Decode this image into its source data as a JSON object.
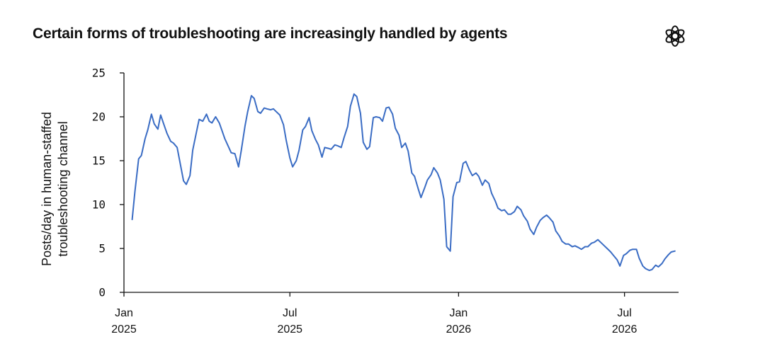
{
  "header": {
    "title": "Certain forms of troubleshooting are increasingly handled by agents",
    "logo_icon": "openai-logo-icon"
  },
  "chart_data": {
    "type": "line",
    "title": "Certain forms of troubleshooting are increasingly handled by agents",
    "xlabel": "",
    "ylabel_lines": [
      "Posts/day in human-staffed",
      "troubleshooting channel"
    ],
    "ylim": [
      0,
      25
    ],
    "yticks": [
      0,
      5,
      10,
      15,
      20,
      25
    ],
    "xlim": [
      "2025-01-01",
      "2026-08-29"
    ],
    "xticks": [
      {
        "date": "2025-01-01",
        "line1": "Jan",
        "line2": "2025"
      },
      {
        "date": "2025-07-01",
        "line1": "Jul",
        "line2": "2025"
      },
      {
        "date": "2026-01-01",
        "line1": "Jan",
        "line2": "2026"
      },
      {
        "date": "2026-07-01",
        "line1": "Jul",
        "line2": "2026"
      }
    ],
    "grid": false,
    "legend": "none",
    "series": [
      {
        "color": "#3a6cc4",
        "x": [
          "2025-01-10",
          "2025-01-13",
          "2025-01-17",
          "2025-01-20",
          "2025-01-24",
          "2025-01-27",
          "2025-01-31",
          "2025-02-03",
          "2025-02-07",
          "2025-02-10",
          "2025-02-14",
          "2025-02-17",
          "2025-02-21",
          "2025-02-24",
          "2025-02-28",
          "2025-03-07",
          "2025-03-10",
          "2025-03-14",
          "2025-03-17",
          "2025-03-21",
          "2025-03-24",
          "2025-03-28",
          "2025-04-01",
          "2025-04-04",
          "2025-04-07",
          "2025-04-11",
          "2025-04-15",
          "2025-04-18",
          "2025-04-21",
          "2025-04-25",
          "2025-04-28",
          "2025-05-02",
          "2025-05-06",
          "2025-05-09",
          "2025-05-13",
          "2025-05-16",
          "2025-05-20",
          "2025-05-23",
          "2025-05-27",
          "2025-05-30",
          "2025-06-03",
          "2025-06-06",
          "2025-06-10",
          "2025-06-13",
          "2025-06-17",
          "2025-06-20",
          "2025-06-24",
          "2025-06-27",
          "2025-07-01",
          "2025-07-04",
          "2025-07-08",
          "2025-07-11",
          "2025-07-15",
          "2025-07-18",
          "2025-07-22",
          "2025-07-25",
          "2025-07-29",
          "2025-08-01",
          "2025-08-05",
          "2025-08-08",
          "2025-08-12",
          "2025-08-15",
          "2025-08-19",
          "2025-08-22",
          "2025-08-26",
          "2025-08-29",
          "2025-09-02",
          "2025-09-05",
          "2025-09-09",
          "2025-09-12",
          "2025-09-16",
          "2025-09-19",
          "2025-09-23",
          "2025-09-26",
          "2025-09-30",
          "2025-10-03",
          "2025-10-07",
          "2025-10-10",
          "2025-10-14",
          "2025-10-17",
          "2025-10-21",
          "2025-10-24",
          "2025-10-28",
          "2025-10-31",
          "2025-11-04",
          "2025-11-07",
          "2025-11-11",
          "2025-11-14",
          "2025-11-18",
          "2025-11-21",
          "2025-11-25",
          "2025-11-28",
          "2025-12-02",
          "2025-12-05",
          "2025-12-09",
          "2025-12-12",
          "2025-12-16",
          "2025-12-19",
          "2025-12-23",
          "2025-12-26",
          "2025-12-30",
          "2026-01-02",
          "2026-01-06",
          "2026-01-09",
          "2026-01-13",
          "2026-01-16",
          "2026-01-20",
          "2026-01-23",
          "2026-01-27",
          "2026-01-30",
          "2026-02-03",
          "2026-02-06",
          "2026-02-10",
          "2026-02-13",
          "2026-02-17",
          "2026-02-20",
          "2026-02-24",
          "2026-02-27",
          "2026-03-03",
          "2026-03-06",
          "2026-03-10",
          "2026-03-13",
          "2026-03-17",
          "2026-03-20",
          "2026-03-24",
          "2026-03-27",
          "2026-03-31",
          "2026-04-03",
          "2026-04-07",
          "2026-04-10",
          "2026-04-14",
          "2026-04-17",
          "2026-04-21",
          "2026-04-24",
          "2026-04-28",
          "2026-05-01",
          "2026-05-05",
          "2026-05-08",
          "2026-05-12",
          "2026-05-15",
          "2026-05-19",
          "2026-05-22",
          "2026-05-26",
          "2026-05-29",
          "2026-06-02",
          "2026-06-05",
          "2026-06-09",
          "2026-06-12",
          "2026-06-16",
          "2026-06-19",
          "2026-06-23",
          "2026-06-26",
          "2026-06-30",
          "2026-07-03",
          "2026-07-07",
          "2026-07-10",
          "2026-07-14",
          "2026-07-17",
          "2026-07-21",
          "2026-07-24",
          "2026-07-28",
          "2026-07-31",
          "2026-08-04",
          "2026-08-07",
          "2026-08-11",
          "2026-08-14",
          "2026-08-18",
          "2026-08-21",
          "2026-08-25"
        ],
        "y": [
          8.3,
          11.5,
          15.2,
          15.6,
          17.5,
          18.5,
          20.3,
          19.2,
          18.6,
          20.2,
          19.0,
          18.1,
          17.2,
          17.0,
          16.5,
          12.7,
          12.3,
          13.3,
          16.2,
          18.2,
          19.7,
          19.5,
          20.3,
          19.5,
          19.3,
          20.0,
          19.3,
          18.4,
          17.5,
          16.6,
          15.9,
          15.8,
          14.3,
          16.2,
          18.9,
          20.6,
          22.4,
          22.1,
          20.6,
          20.4,
          21.0,
          20.9,
          20.8,
          20.9,
          20.5,
          20.2,
          19.1,
          17.3,
          15.3,
          14.3,
          15.0,
          16.2,
          18.5,
          18.9,
          19.9,
          18.4,
          17.4,
          16.8,
          15.4,
          16.5,
          16.4,
          16.3,
          16.8,
          16.7,
          16.5,
          17.6,
          18.9,
          21.2,
          22.6,
          22.3,
          20.4,
          17.1,
          16.3,
          16.6,
          19.9,
          20.0,
          19.9,
          19.5,
          21.0,
          21.1,
          20.3,
          18.7,
          17.9,
          16.5,
          17.0,
          16.1,
          13.6,
          13.2,
          11.8,
          10.8,
          11.9,
          12.8,
          13.4,
          14.2,
          13.6,
          12.8,
          10.6,
          5.2,
          4.7,
          10.9,
          12.5,
          12.6,
          14.7,
          14.9,
          13.9,
          13.3,
          13.6,
          13.2,
          12.2,
          12.8,
          12.4,
          11.3,
          10.4,
          9.6,
          9.3,
          9.4,
          8.9,
          8.9,
          9.2,
          9.8,
          9.4,
          8.7,
          8.1,
          7.2,
          6.6,
          7.4,
          8.2,
          8.5,
          8.8,
          8.5,
          8.0,
          7.0,
          6.4,
          5.8,
          5.5,
          5.5,
          5.2,
          5.3,
          5.1,
          4.9,
          5.2,
          5.2,
          5.6,
          5.7,
          6.0,
          5.7,
          5.3,
          5.0,
          4.6,
          4.2,
          3.7,
          3.0,
          4.2,
          4.4,
          4.8,
          4.9,
          4.9,
          3.9,
          3.0,
          2.7,
          2.5,
          2.6,
          3.1,
          2.9,
          3.3,
          3.8,
          4.3,
          4.6,
          4.7
        ]
      }
    ]
  }
}
